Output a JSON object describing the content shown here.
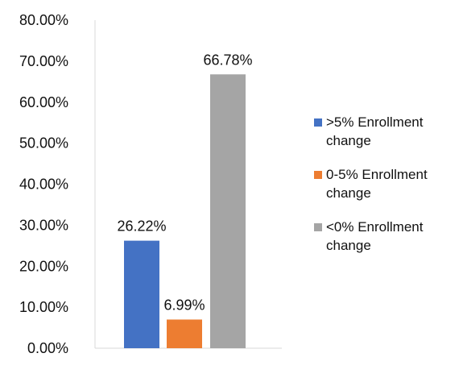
{
  "chart_data": {
    "type": "bar",
    "categories": [
      ">5% Enrollment change",
      "0-5% Enrollment change",
      "<0% Enrollment change"
    ],
    "values": [
      26.22,
      6.99,
      66.78
    ],
    "value_labels": [
      "26.22%",
      "6.99%",
      "66.78%"
    ],
    "colors": [
      "#4472c4",
      "#ed7d31",
      "#a5a5a5"
    ],
    "ylim": [
      0,
      80
    ],
    "y_ticks": [
      0,
      10,
      20,
      30,
      40,
      50,
      60,
      70,
      80
    ],
    "y_tick_labels": [
      "0.00%",
      "10.00%",
      "20.00%",
      "30.00%",
      "40.00%",
      "50.00%",
      "60.00%",
      "70.00%",
      "80.00%"
    ],
    "grid": false,
    "legend": {
      "placement": "right",
      "entries": [
        ">5% Enrollment change",
        "0-5% Enrollment change",
        "<0% Enrollment change"
      ]
    }
  }
}
